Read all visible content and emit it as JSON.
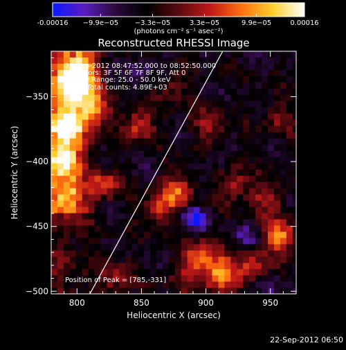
{
  "colorbar": {
    "tick_labels": [
      "-0.00016",
      "−9.9e−05",
      "−3.3e−05",
      "3.3e−05",
      "9.9e−05",
      "0.00016"
    ],
    "tick_values": [
      -0.00016,
      -9.9e-05,
      -3.3e-05,
      3.3e-05,
      9.9e-05,
      0.00016
    ],
    "units": "(photons cm⁻² s⁻¹ asec⁻²)",
    "range": [
      -0.00016,
      0.00016
    ],
    "colors": [
      "#0a1aff",
      "#5a1cc0",
      "#2a0a3a",
      "#000000",
      "#5a0a10",
      "#c01818",
      "#ff7010",
      "#ffd030",
      "#ffffff"
    ]
  },
  "chart_data": {
    "type": "heatmap",
    "title": "Reconstructed RHESSI Image",
    "xlabel": "Heliocentric X (arcsec)",
    "ylabel": "Heliocentric Y (arcsec)",
    "xlim": [
      780,
      970
    ],
    "ylim": [
      -502,
      -315
    ],
    "xticks": [
      800,
      850,
      900,
      950
    ],
    "yticks": [
      -350,
      -400,
      -450,
      -500
    ],
    "annotations": [
      "22-Sep-2012 08:47:52.000 to 08:52:50.000",
      "Detectors: 3F 5F 6F 7F 8F 9F, Att 0",
      "Energy Range: 25.0 - 50.0 keV",
      "Clean    Total counts: 4.89E+03"
    ],
    "peak_label": "Position of Peak = [785,-331]",
    "peak": [
      785,
      -331
    ],
    "limb_line": [
      [
        810,
        -502
      ],
      [
        913,
        -315
      ]
    ],
    "hot_spots": [
      {
        "x": 795,
        "y": -345,
        "level": 0.95
      },
      {
        "x": 790,
        "y": -375,
        "level": 0.9
      },
      {
        "x": 800,
        "y": -330,
        "level": 0.85
      },
      {
        "x": 785,
        "y": -400,
        "level": 0.8
      },
      {
        "x": 810,
        "y": -360,
        "level": 0.75
      },
      {
        "x": 788,
        "y": -430,
        "level": 0.55
      },
      {
        "x": 845,
        "y": -375,
        "level": 0.55
      },
      {
        "x": 820,
        "y": -420,
        "level": 0.5
      },
      {
        "x": 875,
        "y": -425,
        "level": 0.6
      },
      {
        "x": 860,
        "y": -440,
        "level": 0.5
      },
      {
        "x": 900,
        "y": -375,
        "level": 0.4
      },
      {
        "x": 920,
        "y": -420,
        "level": 0.45
      },
      {
        "x": 955,
        "y": -460,
        "level": 0.75
      },
      {
        "x": 945,
        "y": -430,
        "level": 0.45
      },
      {
        "x": 910,
        "y": -490,
        "level": 0.85
      },
      {
        "x": 895,
        "y": -475,
        "level": 0.65
      },
      {
        "x": 935,
        "y": -485,
        "level": 0.5
      },
      {
        "x": 880,
        "y": -490,
        "level": 0.35
      },
      {
        "x": 830,
        "y": -490,
        "level": 0.4
      },
      {
        "x": 955,
        "y": -370,
        "level": 0.3
      },
      {
        "x": 870,
        "y": -345,
        "level": 0.3
      }
    ],
    "cold_spots": [
      {
        "x": 889,
        "y": -446,
        "level": 1.0
      },
      {
        "x": 930,
        "y": -460,
        "level": 0.5
      },
      {
        "x": 945,
        "y": -495,
        "level": 0.55
      },
      {
        "x": 905,
        "y": -400,
        "level": 0.35
      },
      {
        "x": 850,
        "y": -330,
        "level": 0.35
      }
    ]
  },
  "timestamp": "22-Sep-2012 06:50"
}
